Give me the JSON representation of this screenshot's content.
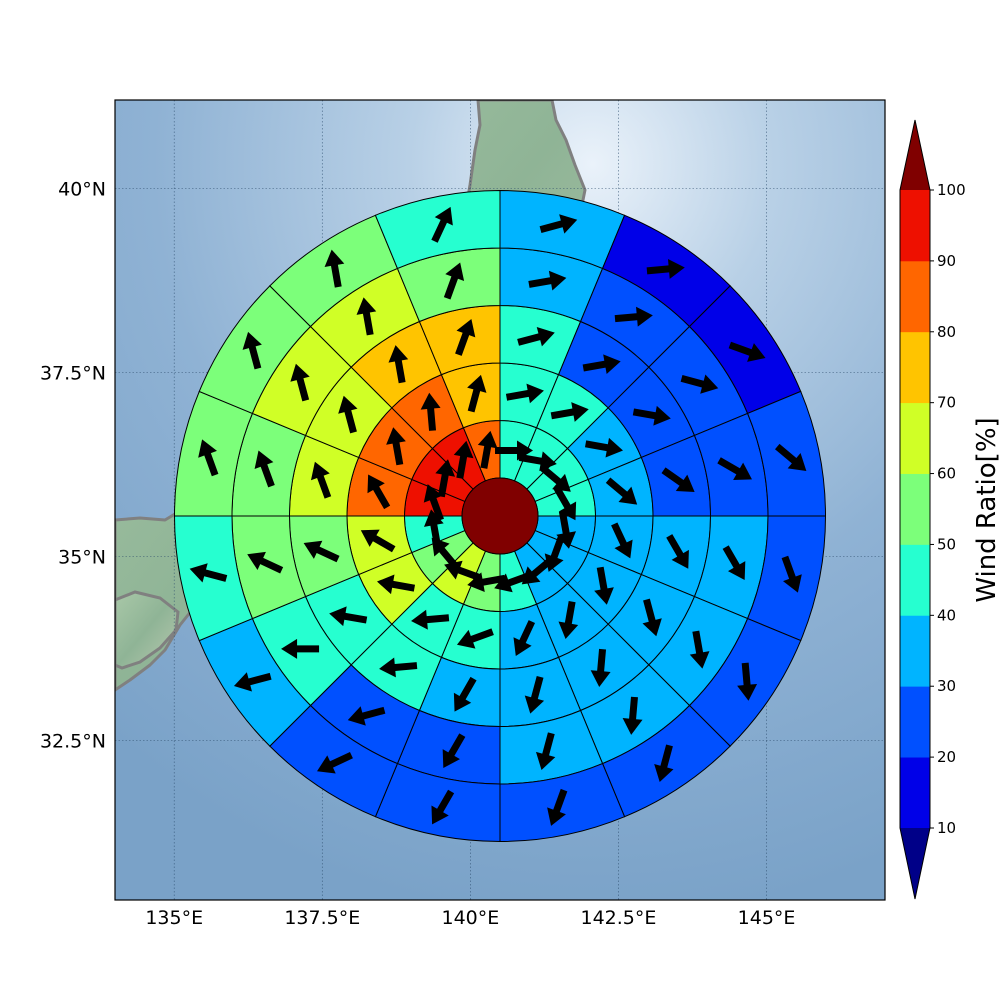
{
  "map": {
    "lon_range": [
      134.0,
      147.0
    ],
    "lat_range": [
      30.33,
      41.2
    ],
    "lon_ticks": [
      {
        "value": 135,
        "label": "135°E"
      },
      {
        "value": 137.5,
        "label": "137.5°E"
      },
      {
        "value": 140,
        "label": "140°E"
      },
      {
        "value": 142.5,
        "label": "142.5°E"
      },
      {
        "value": 145,
        "label": "145°E"
      }
    ],
    "lat_ticks": [
      {
        "value": 40,
        "label": "40°N"
      },
      {
        "value": 37.5,
        "label": "37.5°N"
      },
      {
        "value": 35,
        "label": "35°N"
      },
      {
        "value": 32.5,
        "label": "32.5°N"
      }
    ],
    "center": {
      "lon": 140.5,
      "lat": 35.8
    },
    "ring_count": 5,
    "sectors_per_ring": 16,
    "center_value": 100,
    "sector_values": [
      [
        40,
        40,
        40,
        40,
        30,
        30,
        30,
        40,
        50,
        60,
        50,
        40,
        90,
        90,
        90,
        80
      ],
      [
        40,
        40,
        30,
        30,
        30,
        30,
        30,
        30,
        40,
        40,
        60,
        60,
        80,
        80,
        80,
        70
      ],
      [
        40,
        20,
        20,
        20,
        30,
        30,
        30,
        30,
        30,
        40,
        40,
        50,
        60,
        60,
        70,
        70
      ],
      [
        30,
        20,
        20,
        20,
        30,
        30,
        30,
        30,
        20,
        20,
        40,
        50,
        50,
        60,
        60,
        50
      ],
      [
        30,
        10,
        10,
        20,
        20,
        20,
        20,
        20,
        20,
        20,
        30,
        40,
        50,
        50,
        50,
        40
      ]
    ],
    "sector_directions": [
      [
        90,
        100,
        130,
        150,
        170,
        200,
        230,
        250,
        260,
        290,
        320,
        350,
        340,
        10,
        10,
        10
      ],
      [
        80,
        80,
        100,
        130,
        155,
        170,
        190,
        205,
        250,
        265,
        280,
        300,
        330,
        350,
        355,
        15
      ],
      [
        75,
        80,
        100,
        125,
        150,
        165,
        185,
        195,
        210,
        265,
        280,
        295,
        340,
        345,
        350,
        20
      ],
      [
        80,
        85,
        105,
        120,
        150,
        170,
        185,
        195,
        210,
        255,
        270,
        295,
        340,
        345,
        350,
        20
      ],
      [
        75,
        85,
        110,
        130,
        160,
        175,
        195,
        200,
        210,
        245,
        255,
        285,
        340,
        345,
        350,
        25
      ]
    ]
  },
  "colorbar": {
    "title": "Wind Ratio[%]",
    "tick_labels": [
      "10",
      "20",
      "30",
      "40",
      "50",
      "60",
      "70",
      "80",
      "90",
      "100"
    ],
    "levels": [
      10,
      20,
      30,
      40,
      50,
      60,
      70,
      80,
      90,
      100
    ],
    "colors": [
      "#0000e8",
      "#0050ff",
      "#00b4ff",
      "#26ffd0",
      "#7cff7a",
      "#d0ff26",
      "#ffc400",
      "#ff6600",
      "#ee1000"
    ],
    "under_color": "#000088",
    "over_color": "#800000"
  }
}
